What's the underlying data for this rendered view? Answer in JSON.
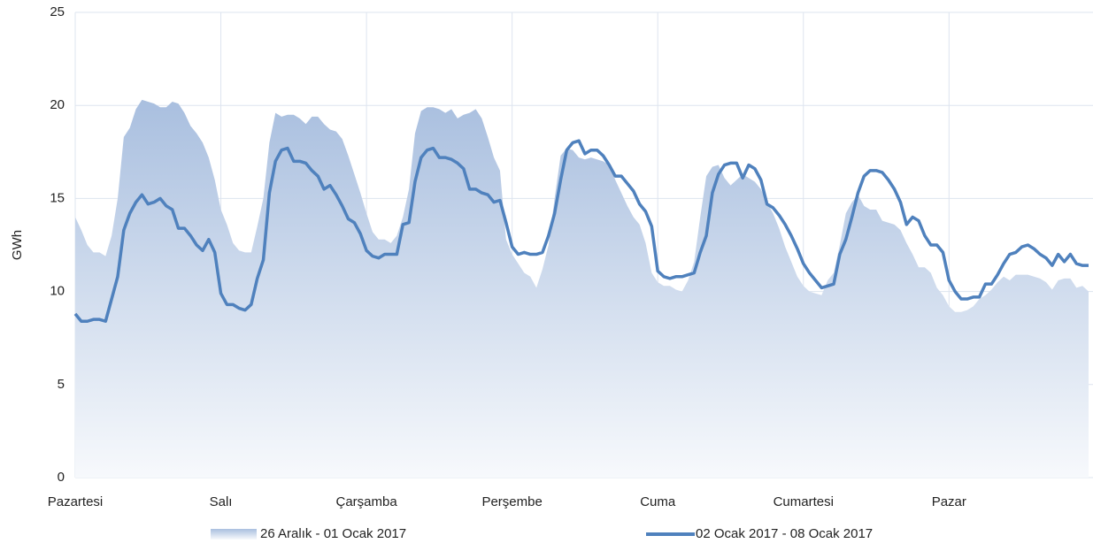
{
  "chart_data": {
    "type": "line",
    "ylabel": "GWh",
    "ylim": [
      0,
      25
    ],
    "yticks": [
      0,
      5,
      10,
      15,
      20,
      25
    ],
    "grid": true,
    "legend": "bottom",
    "categories": [
      "Pazartesi",
      null,
      null,
      null,
      null,
      null,
      null,
      null,
      null,
      null,
      null,
      null,
      null,
      null,
      null,
      null,
      null,
      null,
      null,
      null,
      null,
      null,
      null,
      null,
      "Salı",
      null,
      null,
      null,
      null,
      null,
      null,
      null,
      null,
      null,
      null,
      null,
      null,
      null,
      null,
      null,
      null,
      null,
      null,
      null,
      null,
      null,
      null,
      null,
      "Çarşamba",
      null,
      null,
      null,
      null,
      null,
      null,
      null,
      null,
      null,
      null,
      null,
      null,
      null,
      null,
      null,
      null,
      null,
      null,
      null,
      null,
      null,
      null,
      null,
      "Perşembe",
      null,
      null,
      null,
      null,
      null,
      null,
      null,
      null,
      null,
      null,
      null,
      null,
      null,
      null,
      null,
      null,
      null,
      null,
      null,
      null,
      null,
      null,
      null,
      "Cuma",
      null,
      null,
      null,
      null,
      null,
      null,
      null,
      null,
      null,
      null,
      null,
      null,
      null,
      null,
      null,
      null,
      null,
      null,
      null,
      null,
      null,
      null,
      null,
      "Cumartesi",
      null,
      null,
      null,
      null,
      null,
      null,
      null,
      null,
      null,
      null,
      null,
      null,
      null,
      null,
      null,
      null,
      null,
      null,
      null,
      null,
      null,
      null,
      null,
      "Pazar",
      null,
      null,
      null,
      null,
      null,
      null,
      null,
      null,
      null,
      null,
      null,
      null,
      null,
      null,
      null,
      null,
      null,
      null,
      null,
      null,
      null,
      null,
      null
    ],
    "series": [
      {
        "name": "26 Aralık - 01 Ocak 2017",
        "type": "area",
        "color": "#a9bfdf",
        "values": [
          14.0,
          13.3,
          12.5,
          12.1,
          12.1,
          11.9,
          13.0,
          15.0,
          18.3,
          18.8,
          19.8,
          20.3,
          20.2,
          20.1,
          19.9,
          19.9,
          20.2,
          20.1,
          19.6,
          18.9,
          18.5,
          18.0,
          17.2,
          16.0,
          14.4,
          13.6,
          12.6,
          12.2,
          12.1,
          12.1,
          13.5,
          15.0,
          18.0,
          19.6,
          19.4,
          19.5,
          19.5,
          19.3,
          19.0,
          19.4,
          19.4,
          19.0,
          18.7,
          18.6,
          18.2,
          17.3,
          16.3,
          15.3,
          14.2,
          13.2,
          12.8,
          12.8,
          12.6,
          13.0,
          14.0,
          15.5,
          18.5,
          19.7,
          19.9,
          19.9,
          19.8,
          19.6,
          19.8,
          19.3,
          19.5,
          19.6,
          19.8,
          19.3,
          18.3,
          17.2,
          16.5,
          12.8,
          12.0,
          11.5,
          11.0,
          10.8,
          10.2,
          11.2,
          12.5,
          15.0,
          17.3,
          17.7,
          17.6,
          17.2,
          17.1,
          17.2,
          17.1,
          17.0,
          16.8,
          16.0,
          15.3,
          14.6,
          14.0,
          13.6,
          12.6,
          11.0,
          10.5,
          10.3,
          10.3,
          10.1,
          10.0,
          10.6,
          11.6,
          14.0,
          16.2,
          16.7,
          16.8,
          16.1,
          15.7,
          16.0,
          16.3,
          16.1,
          15.9,
          15.5,
          14.8,
          14.2,
          13.4,
          12.4,
          11.6,
          10.8,
          10.3,
          10.0,
          9.9,
          9.8,
          10.6,
          11.0,
          12.5,
          14.2,
          14.8,
          15.2,
          14.6,
          14.4,
          14.4,
          13.8,
          13.7,
          13.6,
          13.3,
          12.6,
          12.0,
          11.3,
          11.3,
          11.0,
          10.2,
          9.8,
          9.2,
          8.9,
          8.9,
          9.0,
          9.2,
          9.6,
          9.8,
          10.1,
          10.5,
          10.8,
          10.6,
          10.9,
          10.9,
          10.9,
          10.8,
          10.7,
          10.5,
          10.1,
          10.6,
          10.7,
          10.7,
          10.2,
          10.3,
          10.0
        ]
      },
      {
        "name": "02 Ocak 2017 - 08 Ocak 2017",
        "type": "line",
        "color": "#4f81bd",
        "values": [
          8.8,
          8.4,
          8.4,
          8.5,
          8.5,
          8.4,
          9.6,
          10.8,
          13.3,
          14.2,
          14.8,
          15.2,
          14.7,
          14.8,
          15.0,
          14.6,
          14.4,
          13.4,
          13.4,
          13.0,
          12.5,
          12.2,
          12.8,
          12.1,
          9.9,
          9.3,
          9.3,
          9.1,
          9.0,
          9.3,
          10.7,
          11.7,
          15.3,
          17.0,
          17.6,
          17.7,
          17.0,
          17.0,
          16.9,
          16.5,
          16.2,
          15.5,
          15.7,
          15.2,
          14.6,
          13.9,
          13.7,
          13.1,
          12.2,
          11.9,
          11.8,
          12.0,
          12.0,
          12.0,
          13.6,
          13.7,
          15.9,
          17.2,
          17.6,
          17.7,
          17.2,
          17.2,
          17.1,
          16.9,
          16.6,
          15.5,
          15.5,
          15.3,
          15.2,
          14.8,
          14.9,
          13.7,
          12.4,
          12.0,
          12.1,
          12.0,
          12.0,
          12.1,
          13.0,
          14.2,
          16.0,
          17.6,
          18.0,
          18.1,
          17.4,
          17.6,
          17.6,
          17.3,
          16.8,
          16.2,
          16.2,
          15.8,
          15.4,
          14.7,
          14.3,
          13.5,
          11.1,
          10.8,
          10.7,
          10.8,
          10.8,
          10.9,
          11.0,
          12.1,
          13.0,
          15.3,
          16.3,
          16.8,
          16.9,
          16.9,
          16.1,
          16.8,
          16.6,
          16.0,
          14.7,
          14.5,
          14.1,
          13.6,
          13.0,
          12.3,
          11.5,
          11.0,
          10.6,
          10.2,
          10.3,
          10.4,
          12.0,
          12.8,
          14.0,
          15.3,
          16.2,
          16.5,
          16.5,
          16.4,
          16.0,
          15.5,
          14.8,
          13.6,
          14.0,
          13.8,
          13.0,
          12.5,
          12.5,
          12.1,
          10.6,
          10.0,
          9.6,
          9.6,
          9.7,
          9.7,
          10.4,
          10.4,
          10.9,
          11.5,
          12.0,
          12.1,
          12.4,
          12.5,
          12.3,
          12.0,
          11.8,
          11.4,
          12.0,
          11.6,
          12.0,
          11.5,
          11.4,
          11.4
        ]
      }
    ]
  }
}
